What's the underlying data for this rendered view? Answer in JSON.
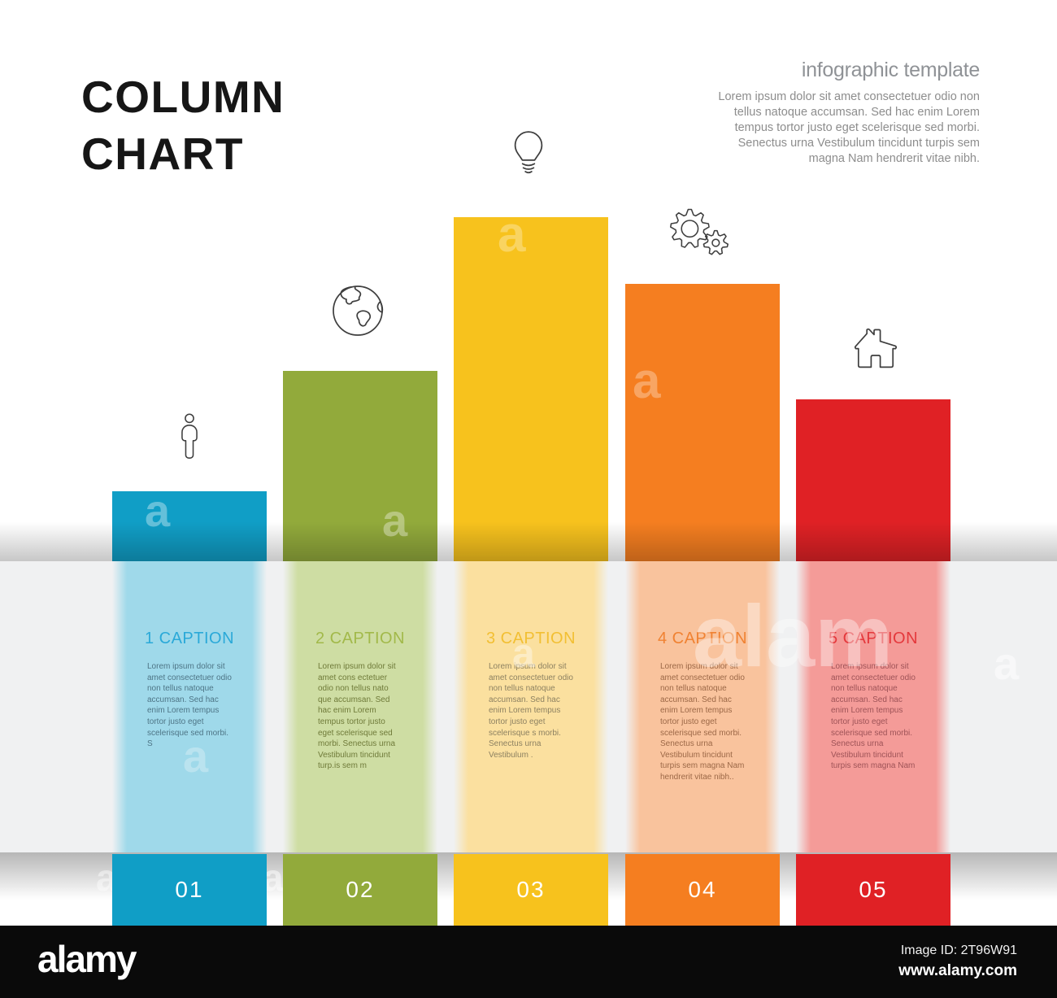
{
  "title": {
    "line1": "COLUMN",
    "line2": "CHART"
  },
  "intro": {
    "heading": "infographic template",
    "body": "Lorem ipsum dolor sit amet consectetuer odio non tellus natoque accumsan. Sed hac enim Lorem tempus tortor justo eget scelerisque sed morbi. Senectus urna Vestibulum tincidunt turpis sem magna Nam hendrerit vitae nibh."
  },
  "chart_data": {
    "type": "bar",
    "title": "COLUMN CHART",
    "categories": [
      "01",
      "02",
      "03",
      "04",
      "05"
    ],
    "series_labels": [
      "1 CAPTION",
      "2 CAPTION",
      "3 CAPTION",
      "4 CAPTION",
      "5 CAPTION"
    ],
    "values": [
      86,
      234,
      423,
      341,
      199
    ],
    "value_note": "relative column heights in pixels; no numeric axis, gridlines or tick labels are shown",
    "ylim": [
      0,
      430
    ],
    "xlabel": "",
    "ylabel": "",
    "legend": false,
    "grid": false,
    "colors": [
      "#109ec6",
      "#92aa3b",
      "#f7c21d",
      "#f57e20",
      "#e02125"
    ],
    "icons": [
      "person-icon",
      "globe-icon",
      "lightbulb-icon",
      "gears-icon",
      "house-icon"
    ]
  },
  "columns": [
    {
      "number": "01",
      "caption": "1 CAPTION",
      "icon": "person-icon",
      "color": "#109ec6",
      "panel_color": "#9fd9ea",
      "caption_color": "#2ba9d8",
      "body_color": "#4e7586",
      "body": "Lorem ipsum dolor sit amet consectetuer odio non tellus natoque accumsan. Sed hac enim Lorem tempus tortor justo eget scelerisque sed morbi. S"
    },
    {
      "number": "02",
      "caption": "2 CAPTION",
      "icon": "globe-icon",
      "color": "#92aa3b",
      "panel_color": "#cedda3",
      "caption_color": "#a2b94a",
      "body_color": "#6f7a39",
      "body": "Lorem ipsum dolor sit amet cons ectetuer odio non tellus nato que accumsan. Sed hac enim Lorem tempus tortor justo eget scelerisque sed morbi. Senectus urna Vestibulum tincidunt turp.is sem m"
    },
    {
      "number": "03",
      "caption": "3 CAPTION",
      "icon": "lightbulb-icon",
      "color": "#f7c21d",
      "panel_color": "#fbe09f",
      "caption_color": "#f2bf33",
      "body_color": "#8d8161",
      "body": "Lorem ipsum dolor sit amet consectetuer odio non tellus natoque accumsan. Sed hac enim Lorem tempus tortor justo eget scelerisque s morbi. Senectus urna Vestibulum ."
    },
    {
      "number": "04",
      "caption": "4 CAPTION",
      "icon": "gears-icon",
      "color": "#f57e20",
      "panel_color": "#f9c39d",
      "caption_color": "#f08232",
      "body_color": "#9c6847",
      "body": "Lorem ipsum dolor sit amet consectetuer odio non tellus natoque accumsan. Sed hac enim Lorem tempus tortor justo eget scelerisque sed morbi. Senectus urna Vestibulum tincidunt turpis sem magna Nam hendrerit vitae nibh.."
    },
    {
      "number": "05",
      "caption": "5 CAPTION",
      "icon": "house-icon",
      "color": "#e02125",
      "panel_color": "#f49b98",
      "caption_color": "#e4383c",
      "body_color": "#9e5357",
      "body": "Lorem ipsum dolor sit amet consectetuer odio non tellus natoque accumsan. Sed hac enim Lorem tempus tortor justo eget scelerisque sed morbi. Senectus urna Vestibulum tincidunt turpis sem magna Nam"
    }
  ],
  "footer": {
    "logo": "alamy",
    "image_id": "Image ID: 2T96W91",
    "url": "www.alamy.com"
  },
  "watermark": {
    "mark": "a",
    "word": "alam"
  }
}
